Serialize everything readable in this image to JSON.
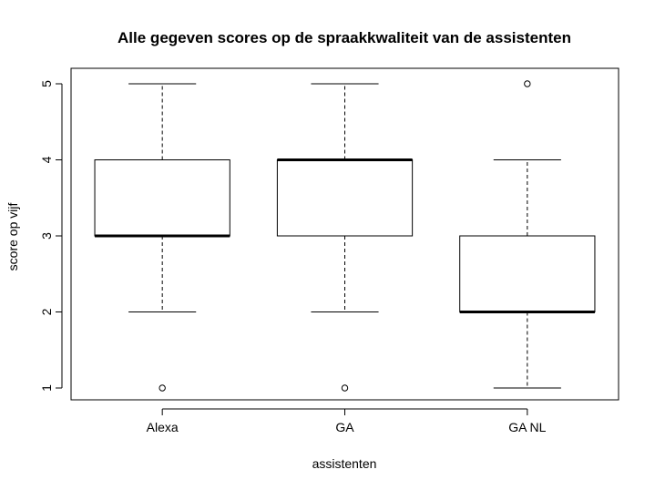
{
  "chart_data": {
    "type": "boxplot",
    "title": "Alle gegeven scores op de spraakkwaliteit van de assistenten",
    "xlabel": "assistenten",
    "ylabel": "score op vijf",
    "categories": [
      "Alexa",
      "GA",
      "GA NL"
    ],
    "yticks": [
      1,
      2,
      3,
      4,
      5
    ],
    "ytick_labels": [
      "1",
      "2",
      "3",
      "4",
      "5"
    ],
    "ylim": [
      0.85,
      5.15
    ],
    "boxes": [
      {
        "category": "Alexa",
        "whisker_low": 2,
        "q1": 3,
        "median": 3,
        "q3": 4,
        "whisker_high": 5,
        "outliers": [
          1
        ]
      },
      {
        "category": "GA",
        "whisker_low": 2,
        "q1": 3,
        "median": 4,
        "q3": 4,
        "whisker_high": 5,
        "outliers": [
          1
        ]
      },
      {
        "category": "GA NL",
        "whisker_low": 1,
        "q1": 2,
        "median": 2,
        "q3": 3,
        "whisker_high": 4,
        "outliers": [
          5
        ]
      }
    ],
    "grid": false,
    "legend": "none"
  }
}
